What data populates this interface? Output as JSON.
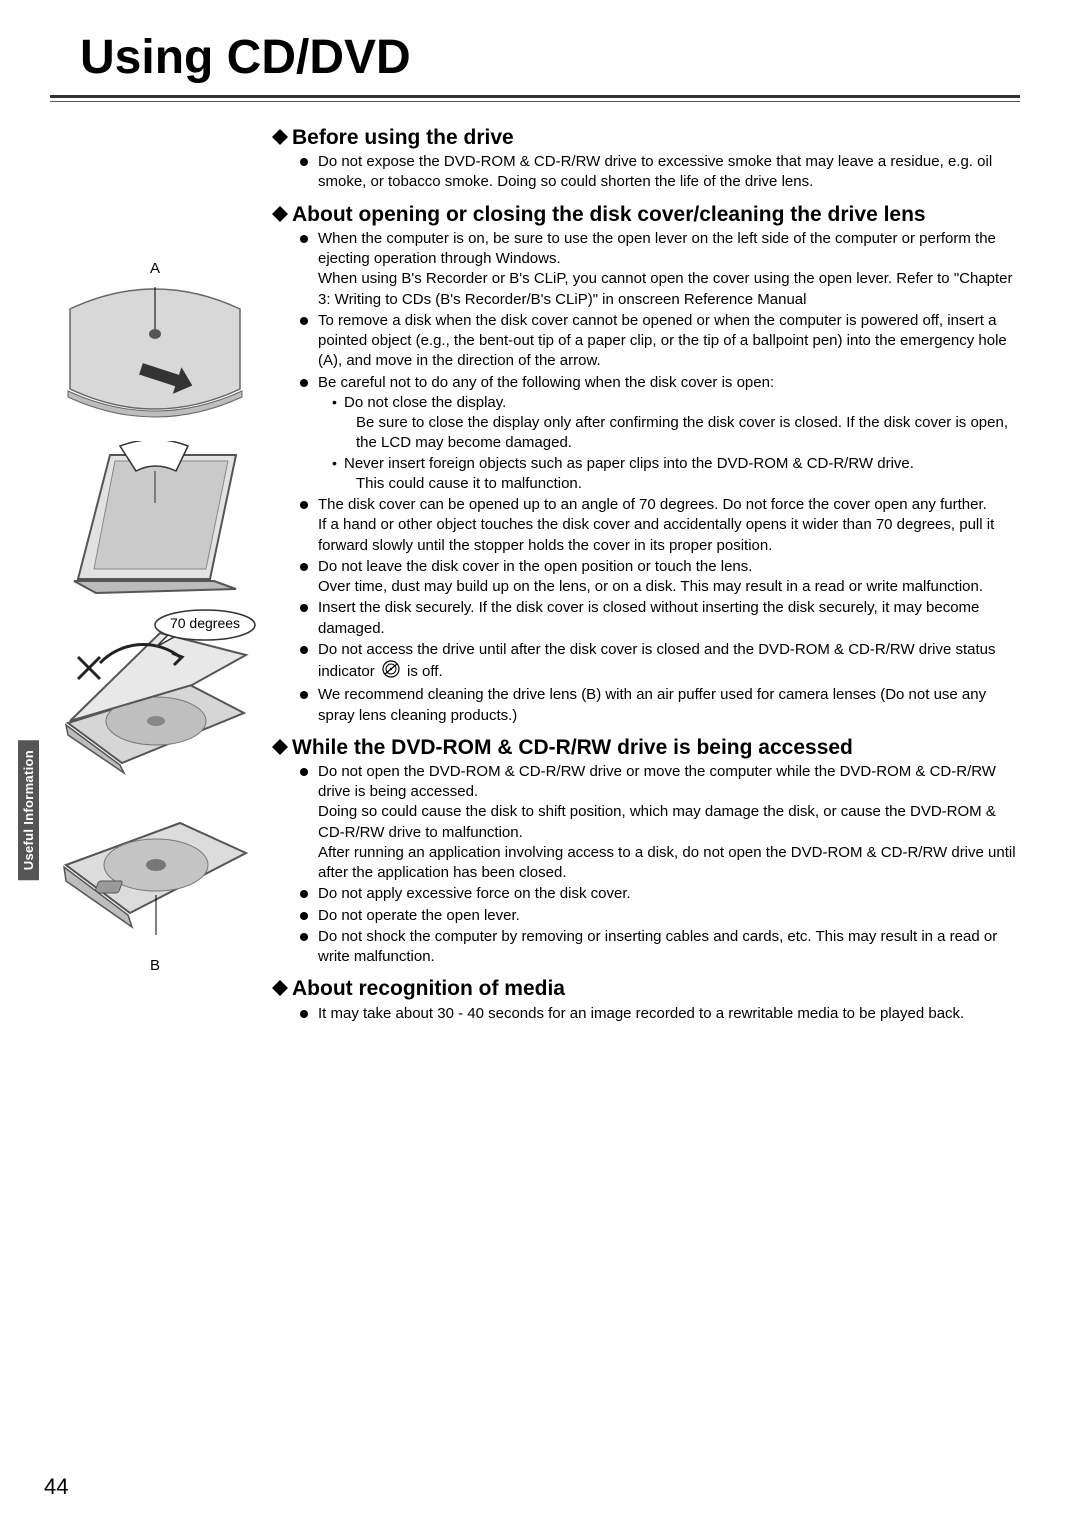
{
  "page": {
    "title": "Using CD/DVD",
    "number": "44",
    "side_tab": "Useful Information"
  },
  "figures": {
    "label_a": "A",
    "label_b": "B",
    "angle_bubble": "70 degrees"
  },
  "sections": [
    {
      "heading": "Before using the drive",
      "items": [
        {
          "text": "Do not expose the DVD-ROM & CD-R/RW drive to excessive smoke that may leave a residue, e.g. oil smoke, or tobacco smoke. Doing so could shorten the life of the drive lens."
        }
      ]
    },
    {
      "heading": "About opening or closing the disk cover/cleaning the drive lens",
      "items": [
        {
          "text": "When the computer is on, be sure to use the open lever on the left side of the computer or perform the ejecting operation through Windows.",
          "cont": "When using B's Recorder or B's CLiP, you cannot open the cover using the open lever. Refer to \"Chapter 3: Writing to CDs (B's Recorder/B's CLiP)\" in onscreen Reference Manual"
        },
        {
          "text": "To remove a disk when the disk cover cannot be opened or when the computer is powered off, insert a pointed object (e.g., the bent-out tip of a paper clip, or the tip of a ballpoint pen) into the emergency hole (A), and move in the direction of the arrow."
        },
        {
          "text": "Be careful not to do any of the following when the disk cover is open:",
          "sub": [
            {
              "text": "Do not close the display.",
              "cont": "Be sure to close the display only after confirming the disk cover is closed. If the disk cover is open, the LCD may become damaged."
            },
            {
              "text": "Never insert foreign objects such as paper clips into the DVD-ROM & CD-R/RW drive.",
              "cont": "This could cause it to malfunction."
            }
          ]
        },
        {
          "text": "The disk cover can be opened up to an angle of 70 degrees. Do not force the cover open any further.",
          "cont": "If a hand or other object touches the disk cover and accidentally opens it wider than 70 degrees, pull it forward slowly until the stopper holds the cover in its proper position."
        },
        {
          "text": "Do not leave the disk cover in the open position or touch the lens.",
          "cont": "Over time, dust may build up on the lens, or on a disk. This may result in a read or write malfunction."
        },
        {
          "text": "Insert the disk securely. If the disk cover is closed without inserting the disk securely, it may become damaged."
        },
        {
          "text_parts": [
            "Do not access the drive until after the disk cover is closed and the DVD-ROM & CD-R/RW drive status indicator",
            "is off."
          ],
          "has_icon": true
        },
        {
          "text": "We recommend cleaning the drive lens (B) with an air puffer used for camera lenses (Do not use any spray lens cleaning products.)"
        }
      ]
    },
    {
      "heading": "While the DVD-ROM & CD-R/RW drive is being accessed",
      "items": [
        {
          "text": "Do not open the DVD-ROM & CD-R/RW drive or move the computer while the DVD-ROM & CD-R/RW drive is being accessed.",
          "cont": "Doing so could cause the disk to shift position, which may damage the disk, or cause the DVD-ROM & CD-R/RW drive to malfunction.",
          "cont2": "After running an application involving access to a disk, do not open the DVD-ROM & CD-R/RW drive until after the application has been closed."
        },
        {
          "text": "Do not apply excessive force on the disk cover."
        },
        {
          "text": "Do not operate the open lever."
        },
        {
          "text": "Do not shock the computer by removing or inserting cables and cards, etc. This may result in a read or write malfunction."
        }
      ]
    },
    {
      "heading": "About recognition of media",
      "items": [
        {
          "text": "It may take about 30 - 40 seconds for an image recorded to a rewritable media to be played back."
        }
      ]
    }
  ]
}
